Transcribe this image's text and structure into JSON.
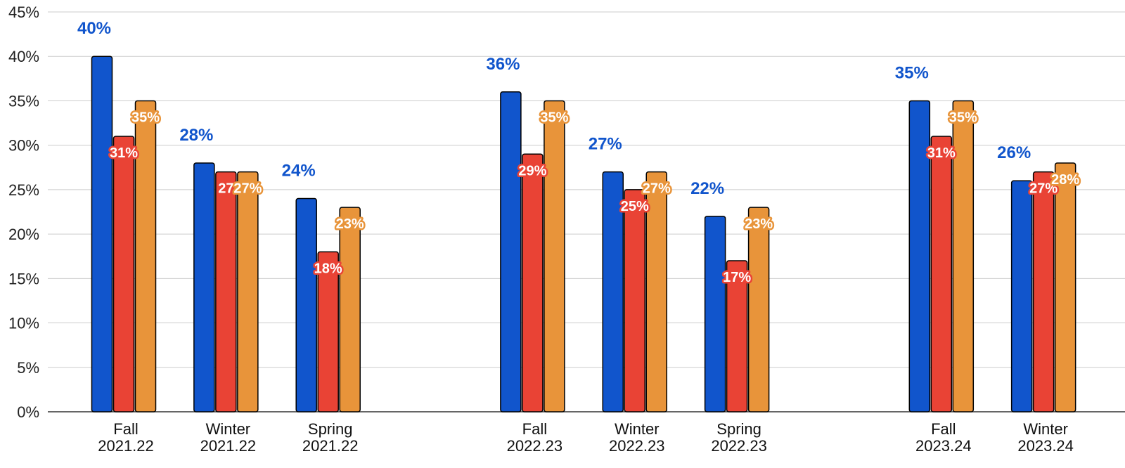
{
  "chart_data": {
    "type": "bar",
    "title": "",
    "xlabel": "",
    "ylabel": "",
    "ylim": [
      0,
      45
    ],
    "yticks": [
      "0%",
      "5%",
      "10%",
      "15%",
      "20%",
      "25%",
      "30%",
      "35%",
      "40%",
      "45%"
    ],
    "grid": true,
    "legend": "none",
    "categories": [
      [
        "Fall",
        "2021.22"
      ],
      [
        "Winter",
        "2021.22"
      ],
      [
        "Spring",
        "2021.22"
      ],
      null,
      [
        "Fall",
        "2022.23"
      ],
      [
        "Winter",
        "2022.23"
      ],
      [
        "Spring",
        "2022.23"
      ],
      null,
      [
        "Fall",
        "2023.24"
      ],
      [
        "Winter",
        "2023.24"
      ]
    ],
    "series": [
      {
        "color": "#1155CC",
        "values": [
          40,
          28,
          24,
          null,
          36,
          27,
          22,
          null,
          35,
          26
        ],
        "labels": [
          "40%",
          "28%",
          "24%",
          null,
          "36%",
          "27%",
          "22%",
          null,
          "35%",
          "26%"
        ]
      },
      {
        "color": "#E94335",
        "values": [
          31,
          27,
          18,
          null,
          29,
          25,
          17,
          null,
          31,
          27
        ],
        "labels": [
          "31%",
          "27",
          "18%",
          null,
          "29%",
          "25%",
          "17%",
          null,
          "31%",
          "27%"
        ]
      },
      {
        "color": "#E8943A",
        "values": [
          35,
          27,
          23,
          null,
          35,
          27,
          23,
          null,
          35,
          28
        ],
        "labels": [
          "35%",
          "27%",
          "23%",
          null,
          "35%",
          "27%",
          "23%",
          null,
          "35%",
          "28%"
        ]
      }
    ]
  }
}
